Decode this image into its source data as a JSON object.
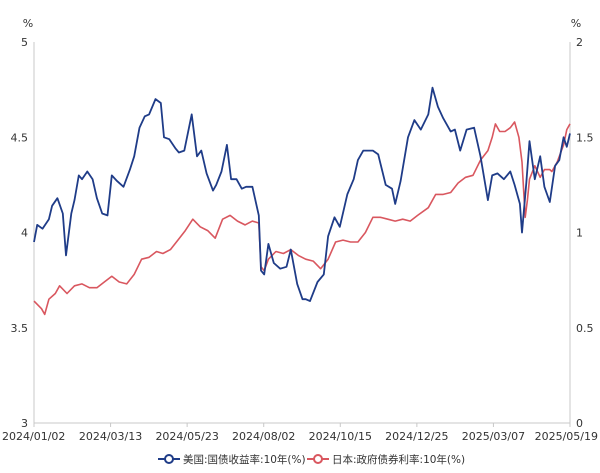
{
  "chart_data": {
    "type": "line",
    "left_unit": "%",
    "right_unit": "%",
    "x_tick_labels": [
      "2024/01/02",
      "2024/03/13",
      "2024/05/23",
      "2024/08/02",
      "2024/10/15",
      "2024/12/25",
      "2025/03/07",
      "2025/05/19"
    ],
    "x_range": [
      "2024-01-02",
      "2025-05-19"
    ],
    "y_left": {
      "min": 3,
      "max": 5,
      "ticks": [
        "3",
        "3.5",
        "4",
        "4.5",
        "5"
      ]
    },
    "y_right": {
      "min": 0,
      "max": 2,
      "ticks": [
        "0",
        "0.5",
        "1",
        "1.5",
        "2"
      ]
    },
    "grid": false,
    "legend_position": "bottom",
    "colors": {
      "us": "#1f3c88",
      "jp": "#d9575f"
    },
    "series": [
      {
        "name": "美国:国债收益率:10年(%)",
        "axis": "left",
        "points": [
          [
            "2024-01-02",
            3.95
          ],
          [
            "2024-01-05",
            4.04
          ],
          [
            "2024-01-10",
            4.02
          ],
          [
            "2024-01-16",
            4.07
          ],
          [
            "2024-01-19",
            4.14
          ],
          [
            "2024-01-24",
            4.18
          ],
          [
            "2024-01-29",
            4.1
          ],
          [
            "2024-02-01",
            3.88
          ],
          [
            "2024-02-06",
            4.1
          ],
          [
            "2024-02-09",
            4.17
          ],
          [
            "2024-02-13",
            4.3
          ],
          [
            "2024-02-16",
            4.28
          ],
          [
            "2024-02-21",
            4.32
          ],
          [
            "2024-02-26",
            4.28
          ],
          [
            "2024-03-01",
            4.18
          ],
          [
            "2024-03-06",
            4.1
          ],
          [
            "2024-03-11",
            4.09
          ],
          [
            "2024-03-15",
            4.3
          ],
          [
            "2024-03-20",
            4.27
          ],
          [
            "2024-03-26",
            4.24
          ],
          [
            "2024-04-01",
            4.33
          ],
          [
            "2024-04-05",
            4.4
          ],
          [
            "2024-04-10",
            4.55
          ],
          [
            "2024-04-15",
            4.61
          ],
          [
            "2024-04-19",
            4.62
          ],
          [
            "2024-04-25",
            4.7
          ],
          [
            "2024-04-30",
            4.68
          ],
          [
            "2024-05-03",
            4.5
          ],
          [
            "2024-05-08",
            4.49
          ],
          [
            "2024-05-14",
            4.44
          ],
          [
            "2024-05-17",
            4.42
          ],
          [
            "2024-05-22",
            4.43
          ],
          [
            "2024-05-29",
            4.62
          ],
          [
            "2024-06-03",
            4.4
          ],
          [
            "2024-06-07",
            4.43
          ],
          [
            "2024-06-12",
            4.31
          ],
          [
            "2024-06-18",
            4.22
          ],
          [
            "2024-06-21",
            4.25
          ],
          [
            "2024-06-26",
            4.32
          ],
          [
            "2024-07-01",
            4.46
          ],
          [
            "2024-07-05",
            4.28
          ],
          [
            "2024-07-10",
            4.28
          ],
          [
            "2024-07-15",
            4.23
          ],
          [
            "2024-07-19",
            4.24
          ],
          [
            "2024-07-25",
            4.24
          ],
          [
            "2024-07-31",
            4.09
          ],
          [
            "2024-08-02",
            3.8
          ],
          [
            "2024-08-05",
            3.78
          ],
          [
            "2024-08-09",
            3.94
          ],
          [
            "2024-08-14",
            3.84
          ],
          [
            "2024-08-20",
            3.81
          ],
          [
            "2024-08-26",
            3.82
          ],
          [
            "2024-08-30",
            3.91
          ],
          [
            "2024-09-05",
            3.73
          ],
          [
            "2024-09-10",
            3.65
          ],
          [
            "2024-09-13",
            3.65
          ],
          [
            "2024-09-17",
            3.64
          ],
          [
            "2024-09-24",
            3.74
          ],
          [
            "2024-09-30",
            3.78
          ],
          [
            "2024-10-04",
            3.98
          ],
          [
            "2024-10-10",
            4.08
          ],
          [
            "2024-10-15",
            4.03
          ],
          [
            "2024-10-22",
            4.2
          ],
          [
            "2024-10-28",
            4.28
          ],
          [
            "2024-11-01",
            4.38
          ],
          [
            "2024-11-06",
            4.43
          ],
          [
            "2024-11-12",
            4.43
          ],
          [
            "2024-11-15",
            4.43
          ],
          [
            "2024-11-20",
            4.41
          ],
          [
            "2024-11-27",
            4.25
          ],
          [
            "2024-12-03",
            4.23
          ],
          [
            "2024-12-06",
            4.15
          ],
          [
            "2024-12-11",
            4.27
          ],
          [
            "2024-12-18",
            4.5
          ],
          [
            "2024-12-24",
            4.59
          ],
          [
            "2024-12-30",
            4.54
          ],
          [
            "2025-01-06",
            4.62
          ],
          [
            "2025-01-10",
            4.76
          ],
          [
            "2025-01-15",
            4.66
          ],
          [
            "2025-01-20",
            4.6
          ],
          [
            "2025-01-27",
            4.53
          ],
          [
            "2025-01-31",
            4.54
          ],
          [
            "2025-02-05",
            4.43
          ],
          [
            "2025-02-11",
            4.54
          ],
          [
            "2025-02-18",
            4.55
          ],
          [
            "2025-02-24",
            4.4
          ],
          [
            "2025-03-03",
            4.17
          ],
          [
            "2025-03-07",
            4.3
          ],
          [
            "2025-03-12",
            4.31
          ],
          [
            "2025-03-18",
            4.28
          ],
          [
            "2025-03-24",
            4.32
          ],
          [
            "2025-03-28",
            4.25
          ],
          [
            "2025-04-02",
            4.15
          ],
          [
            "2025-04-04",
            4.0
          ],
          [
            "2025-04-08",
            4.26
          ],
          [
            "2025-04-11",
            4.48
          ],
          [
            "2025-04-16",
            4.28
          ],
          [
            "2025-04-21",
            4.4
          ],
          [
            "2025-04-25",
            4.24
          ],
          [
            "2025-04-30",
            4.16
          ],
          [
            "2025-05-05",
            4.35
          ],
          [
            "2025-05-09",
            4.38
          ],
          [
            "2025-05-13",
            4.5
          ],
          [
            "2025-05-16",
            4.45
          ],
          [
            "2025-05-19",
            4.52
          ]
        ]
      },
      {
        "name": "日本:政府债券利率:10年(%)",
        "axis": "right",
        "points": [
          [
            "2024-01-02",
            0.64
          ],
          [
            "2024-01-09",
            0.6
          ],
          [
            "2024-01-12",
            0.57
          ],
          [
            "2024-01-16",
            0.65
          ],
          [
            "2024-01-22",
            0.68
          ],
          [
            "2024-01-26",
            0.72
          ],
          [
            "2024-02-02",
            0.68
          ],
          [
            "2024-02-09",
            0.72
          ],
          [
            "2024-02-16",
            0.73
          ],
          [
            "2024-02-23",
            0.71
          ],
          [
            "2024-03-01",
            0.71
          ],
          [
            "2024-03-08",
            0.74
          ],
          [
            "2024-03-15",
            0.77
          ],
          [
            "2024-03-22",
            0.74
          ],
          [
            "2024-03-29",
            0.73
          ],
          [
            "2024-04-05",
            0.78
          ],
          [
            "2024-04-12",
            0.86
          ],
          [
            "2024-04-19",
            0.87
          ],
          [
            "2024-04-26",
            0.9
          ],
          [
            "2024-05-02",
            0.89
          ],
          [
            "2024-05-09",
            0.91
          ],
          [
            "2024-05-16",
            0.96
          ],
          [
            "2024-05-23",
            1.01
          ],
          [
            "2024-05-30",
            1.07
          ],
          [
            "2024-06-06",
            1.03
          ],
          [
            "2024-06-13",
            1.01
          ],
          [
            "2024-06-20",
            0.97
          ],
          [
            "2024-06-27",
            1.07
          ],
          [
            "2024-07-04",
            1.09
          ],
          [
            "2024-07-11",
            1.06
          ],
          [
            "2024-07-18",
            1.04
          ],
          [
            "2024-07-25",
            1.06
          ],
          [
            "2024-07-31",
            1.05
          ],
          [
            "2024-08-02",
            0.82
          ],
          [
            "2024-08-05",
            0.8
          ],
          [
            "2024-08-09",
            0.86
          ],
          [
            "2024-08-16",
            0.9
          ],
          [
            "2024-08-23",
            0.89
          ],
          [
            "2024-08-30",
            0.91
          ],
          [
            "2024-09-06",
            0.88
          ],
          [
            "2024-09-13",
            0.86
          ],
          [
            "2024-09-20",
            0.85
          ],
          [
            "2024-09-27",
            0.81
          ],
          [
            "2024-10-04",
            0.86
          ],
          [
            "2024-10-11",
            0.95
          ],
          [
            "2024-10-18",
            0.96
          ],
          [
            "2024-10-25",
            0.95
          ],
          [
            "2024-11-01",
            0.95
          ],
          [
            "2024-11-08",
            1.0
          ],
          [
            "2024-11-15",
            1.08
          ],
          [
            "2024-11-22",
            1.08
          ],
          [
            "2024-11-29",
            1.07
          ],
          [
            "2024-12-06",
            1.06
          ],
          [
            "2024-12-13",
            1.07
          ],
          [
            "2024-12-20",
            1.06
          ],
          [
            "2024-12-27",
            1.09
          ],
          [
            "2025-01-06",
            1.13
          ],
          [
            "2025-01-13",
            1.2
          ],
          [
            "2025-01-20",
            1.2
          ],
          [
            "2025-01-27",
            1.21
          ],
          [
            "2025-02-03",
            1.26
          ],
          [
            "2025-02-10",
            1.29
          ],
          [
            "2025-02-17",
            1.3
          ],
          [
            "2025-02-24",
            1.38
          ],
          [
            "2025-03-03",
            1.43
          ],
          [
            "2025-03-07",
            1.5
          ],
          [
            "2025-03-10",
            1.57
          ],
          [
            "2025-03-14",
            1.53
          ],
          [
            "2025-03-19",
            1.53
          ],
          [
            "2025-03-24",
            1.55
          ],
          [
            "2025-03-28",
            1.58
          ],
          [
            "2025-04-01",
            1.5
          ],
          [
            "2025-04-04",
            1.37
          ],
          [
            "2025-04-07",
            1.08
          ],
          [
            "2025-04-09",
            1.17
          ],
          [
            "2025-04-11",
            1.28
          ],
          [
            "2025-04-16",
            1.35
          ],
          [
            "2025-04-21",
            1.29
          ],
          [
            "2025-04-25",
            1.33
          ],
          [
            "2025-04-30",
            1.33
          ],
          [
            "2025-05-02",
            1.32
          ],
          [
            "2025-05-07",
            1.37
          ],
          [
            "2025-05-13",
            1.46
          ],
          [
            "2025-05-16",
            1.54
          ],
          [
            "2025-05-19",
            1.57
          ]
        ]
      }
    ]
  }
}
